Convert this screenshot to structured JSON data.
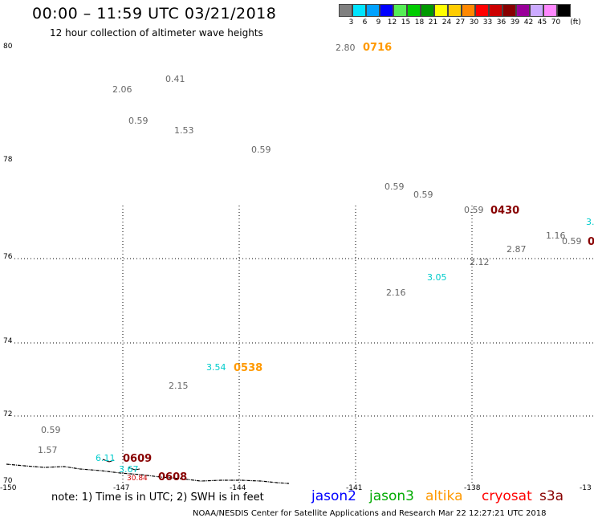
{
  "header": {
    "title": "00:00 – 11:59 UTC 03/21/2018",
    "subtitle": "12 hour collection of altimeter wave heights"
  },
  "legend": {
    "unit": "(ft)",
    "items": [
      {
        "label": "3",
        "color": "#808080"
      },
      {
        "label": "6",
        "color": "#00e5ff"
      },
      {
        "label": "9",
        "color": "#00a2ff"
      },
      {
        "label": "12",
        "color": "#0000ff"
      },
      {
        "label": "15",
        "color": "#55ee55"
      },
      {
        "label": "18",
        "color": "#00cc00"
      },
      {
        "label": "21",
        "color": "#009900"
      },
      {
        "label": "24",
        "color": "#ffff00"
      },
      {
        "label": "27",
        "color": "#ffcc00"
      },
      {
        "label": "30",
        "color": "#ff8800"
      },
      {
        "label": "33",
        "color": "#ff0000"
      },
      {
        "label": "36",
        "color": "#cc0000"
      },
      {
        "label": "39",
        "color": "#880000"
      },
      {
        "label": "42",
        "color": "#990099"
      },
      {
        "label": "45",
        "color": "#ccaaff"
      },
      {
        "label": "70",
        "color": "#ff88ff"
      },
      {
        "label": "",
        "color": "#000000"
      }
    ]
  },
  "axes": {
    "lat_labels": [
      "80",
      "78",
      "76",
      "74",
      "72",
      "70"
    ],
    "lon_labels": [
      "-150",
      "-147",
      "-144",
      "-141",
      "-138",
      "-13"
    ]
  },
  "observations": [
    {
      "text": "2.80",
      "color": "#666666"
    },
    {
      "text": "2.06",
      "color": "#666666"
    },
    {
      "text": "0.41",
      "color": "#666666"
    },
    {
      "text": "0.59",
      "color": "#666666"
    },
    {
      "text": "1.53",
      "color": "#666666"
    },
    {
      "text": "0.59",
      "color": "#666666"
    },
    {
      "text": "0.59",
      "color": "#666666"
    },
    {
      "text": "0.59",
      "color": "#666666"
    },
    {
      "text": "0.59",
      "color": "#666666"
    },
    {
      "text": "3.",
      "color": "#00cccc"
    },
    {
      "text": "1.16",
      "color": "#666666"
    },
    {
      "text": "0.59",
      "color": "#666666"
    },
    {
      "text": "2.87",
      "color": "#666666"
    },
    {
      "text": "2.12",
      "color": "#666666"
    },
    {
      "text": "3.05",
      "color": "#00cccc"
    },
    {
      "text": "2.16",
      "color": "#666666"
    },
    {
      "text": "3.54",
      "color": "#00cccc"
    },
    {
      "text": "2.15",
      "color": "#666666"
    },
    {
      "text": "0.59",
      "color": "#666666"
    },
    {
      "text": "1.57",
      "color": "#666666"
    },
    {
      "text": "6.11",
      "color": "#00cccc"
    },
    {
      "text": "3.67",
      "color": "#00cccc"
    },
    {
      "text": "30.84",
      "color": "#cc0000"
    }
  ],
  "time_labels": [
    {
      "text": "0716",
      "color": "#ff9900"
    },
    {
      "text": "0430",
      "color": "#880000"
    },
    {
      "text": "0",
      "color": "#880000"
    },
    {
      "text": "0538",
      "color": "#ff9900"
    },
    {
      "text": "0609",
      "color": "#880000"
    },
    {
      "text": "0608",
      "color": "#880000"
    }
  ],
  "footer": {
    "note": "note: 1) Time is in UTC; 2) SWH is in feet",
    "satellites": [
      {
        "name": "jason2",
        "color": "#0000ff"
      },
      {
        "name": "jason3",
        "color": "#00aa00"
      },
      {
        "name": "altika",
        "color": "#ff9900"
      },
      {
        "name": "cryosat",
        "color": "#ff0000"
      },
      {
        "name": "s3a",
        "color": "#880000"
      }
    ],
    "credit": "NOAA/NESDIS Center for Satellite Applications and Research    Mar 22 12:27:21 UTC 2018"
  }
}
